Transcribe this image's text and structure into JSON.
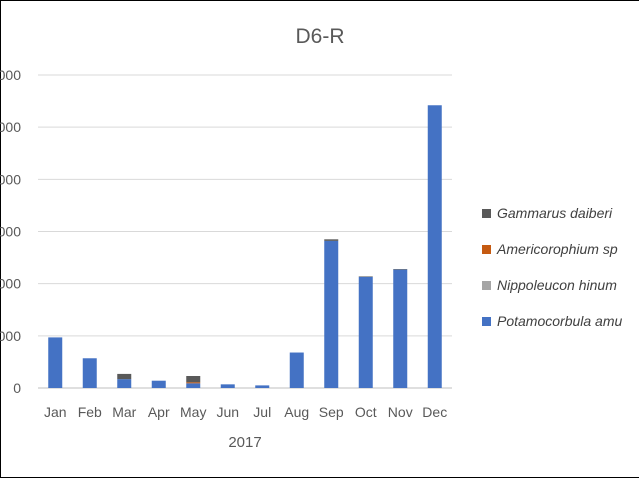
{
  "chart_data": {
    "type": "bar",
    "stacked": true,
    "title": "D6-R",
    "xlabel": "2017",
    "ylabel": "",
    "categories": [
      "Jan",
      "Feb",
      "Mar",
      "Apr",
      "May",
      "Jun",
      "Jul",
      "Aug",
      "Sep",
      "Oct",
      "Nov",
      "Dec"
    ],
    "y_tick_labels": [
      "0",
      "000",
      "000",
      "000",
      "000",
      "000",
      "000"
    ],
    "ylim": [
      0,
      6
    ],
    "grid": true,
    "legend_position": "right",
    "series": [
      {
        "name": "Potamocorbula amu",
        "color": "#4472C4",
        "values": [
          0.97,
          0.57,
          0.17,
          0.14,
          0.09,
          0.07,
          0.05,
          0.68,
          2.82,
          2.13,
          2.27,
          5.42
        ]
      },
      {
        "name": "Nippoleucon hinum",
        "color": "#A5A5A5",
        "values": [
          0,
          0,
          0,
          0,
          0,
          0,
          0,
          0,
          0,
          0,
          0,
          0
        ]
      },
      {
        "name": "Americorophium sp",
        "color": "#C55A11",
        "values": [
          0,
          0,
          0,
          0,
          0.02,
          0,
          0,
          0,
          0,
          0,
          0,
          0
        ]
      },
      {
        "name": "Gammarus daiberi",
        "color": "#595959",
        "values": [
          0,
          0,
          0.1,
          0,
          0.12,
          0,
          0,
          0,
          0.03,
          0.01,
          0.01,
          0
        ]
      }
    ]
  }
}
